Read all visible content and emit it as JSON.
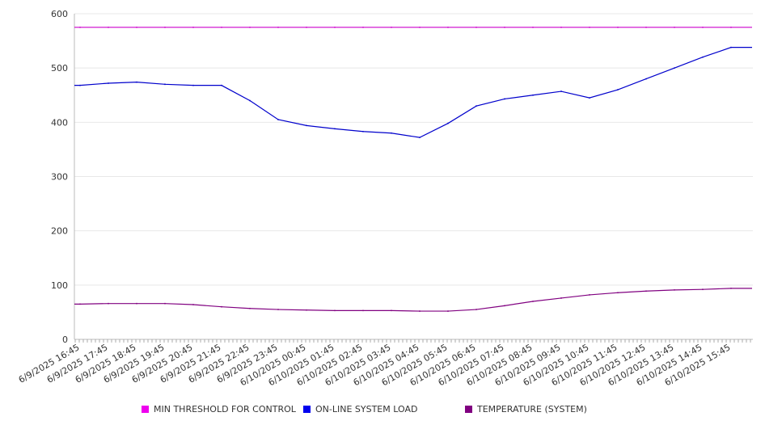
{
  "chart_data": {
    "type": "line",
    "title": "",
    "xlabel": "",
    "ylabel": "",
    "ylim": [
      0,
      600
    ],
    "y_ticks": [
      "0",
      "100",
      "200",
      "300",
      "400",
      "500",
      "600"
    ],
    "grid": true,
    "legend_position": "bottom",
    "x_tick_labels": [
      "6/9/2025 16:45",
      "6/9/2025 17:45",
      "6/9/2025 18:45",
      "6/9/2025 19:45",
      "6/9/2025 20:45",
      "6/9/2025 21:45",
      "6/9/2025 22:45",
      "6/9/2025 23:45",
      "6/10/2025 00:45",
      "6/10/2025 01:45",
      "6/10/2025 02:45",
      "6/10/2025 03:45",
      "6/10/2025 04:45",
      "6/10/2025 05:45",
      "6/10/2025 06:45",
      "6/10/2025 07:45",
      "6/10/2025 08:45",
      "6/10/2025 09:45",
      "6/10/2025 10:45",
      "6/10/2025 11:45",
      "6/10/2025 12:45",
      "6/10/2025 13:45",
      "6/10/2025 14:45",
      "6/10/2025 15:45"
    ],
    "x": [
      "6/9/2025 16:45",
      "6/9/2025 17:45",
      "6/9/2025 18:45",
      "6/9/2025 19:45",
      "6/9/2025 20:45",
      "6/9/2025 21:45",
      "6/9/2025 22:45",
      "6/9/2025 23:45",
      "6/10/2025 00:45",
      "6/10/2025 01:45",
      "6/10/2025 02:45",
      "6/10/2025 03:45",
      "6/10/2025 04:45",
      "6/10/2025 05:45",
      "6/10/2025 06:45",
      "6/10/2025 07:45",
      "6/10/2025 08:45",
      "6/10/2025 09:45",
      "6/10/2025 10:45",
      "6/10/2025 11:45",
      "6/10/2025 12:45",
      "6/10/2025 13:45",
      "6/10/2025 14:45",
      "6/10/2025 15:45"
    ],
    "series": [
      {
        "name": "MIN THRESHOLD FOR CONTROL",
        "color": "#cc00cc",
        "values": [
          575,
          575,
          575,
          575,
          575,
          575,
          575,
          575,
          575,
          575,
          575,
          575,
          575,
          575,
          575,
          575,
          575,
          575,
          575,
          575,
          575,
          575,
          575,
          575
        ]
      },
      {
        "name": "ON-LINE SYSTEM LOAD",
        "color": "#0000cc",
        "values": [
          468,
          472,
          474,
          470,
          468,
          468,
          440,
          405,
          394,
          388,
          383,
          380,
          372,
          398,
          430,
          443,
          450,
          457,
          445,
          460,
          480,
          500,
          520,
          538
        ]
      },
      {
        "name": "TEMPERATURE (SYSTEM)",
        "color": "#800080",
        "values": [
          65,
          66,
          66,
          66,
          64,
          60,
          57,
          55,
          54,
          53,
          53,
          53,
          52,
          52,
          55,
          62,
          70,
          76,
          82,
          86,
          89,
          91,
          92,
          94
        ]
      }
    ]
  }
}
